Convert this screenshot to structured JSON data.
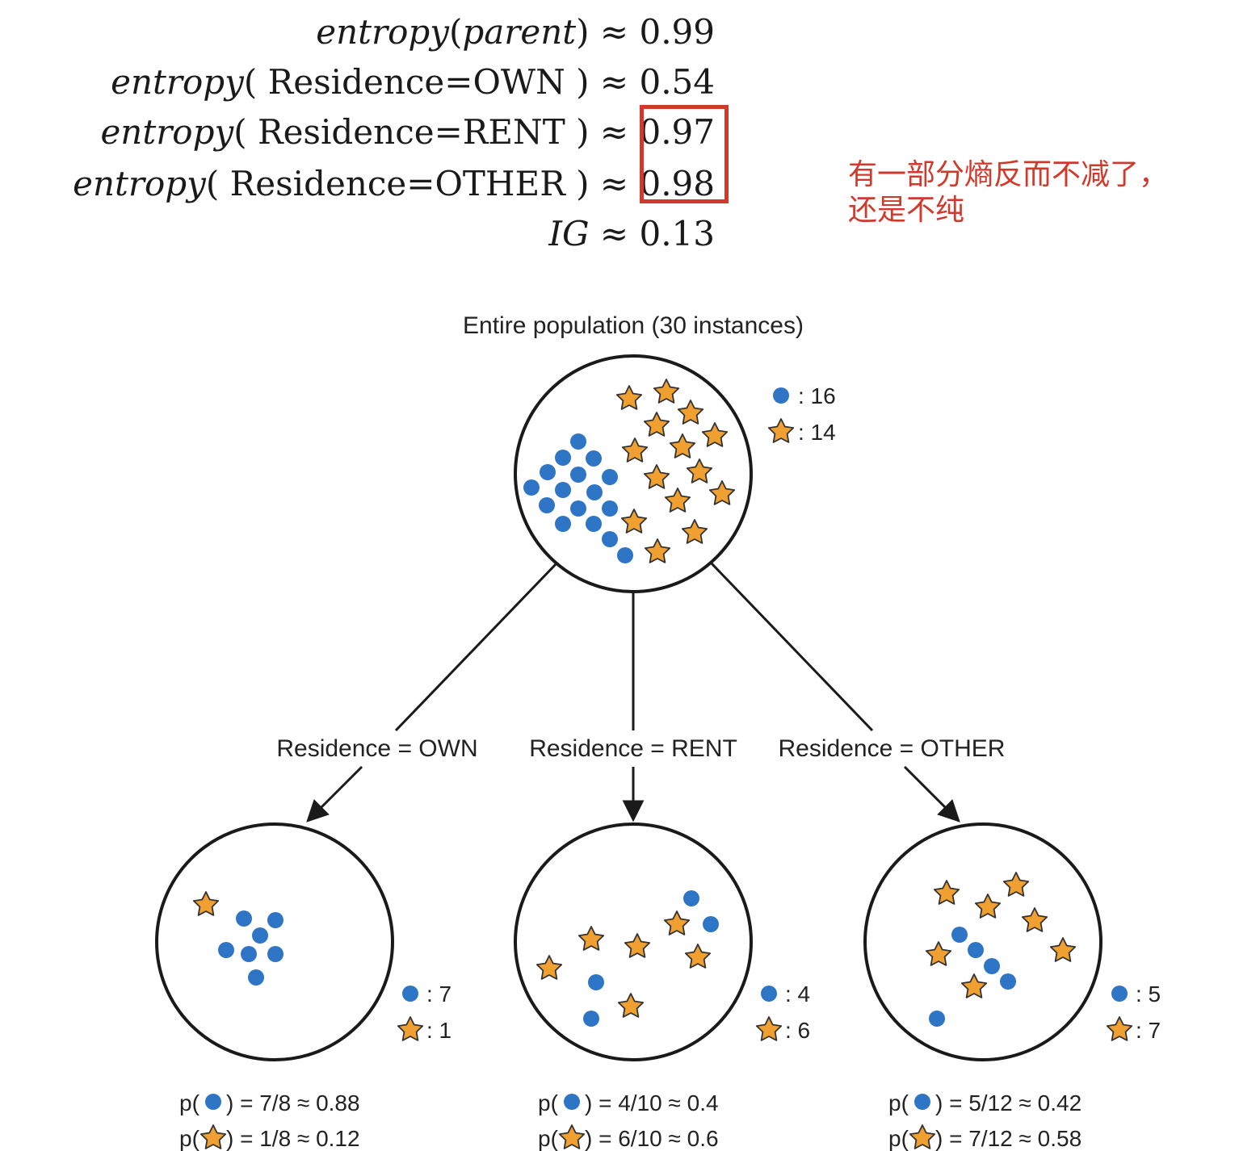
{
  "formulas": {
    "parent": {
      "fn": "entropy",
      "arg": "parent",
      "approx": "≈",
      "value": "0.99"
    },
    "own": {
      "fn": "entropy",
      "arg": "Residence=OWN",
      "approx": "≈",
      "value": "0.54"
    },
    "rent": {
      "fn": "entropy",
      "arg": "Residence=RENT",
      "approx": "≈",
      "value": "0.97"
    },
    "other": {
      "fn": "entropy",
      "arg": "Residence=OTHER",
      "approx": "≈",
      "value": "0.98"
    },
    "ig": {
      "fn": "IG",
      "approx": "≈",
      "value": "0.13"
    }
  },
  "annotation": {
    "line1": "有一部分熵反而不减了，",
    "line2": "还是不纯",
    "color": "#d0392b"
  },
  "tree": {
    "root_title": "Entire population (30 instances)",
    "root_counts": {
      "dots": ": 16",
      "stars": ": 14"
    },
    "branches": [
      {
        "label": "Residence = OWN",
        "dots": ": 7",
        "stars": ": 1",
        "p_dot": ") = 7/8 ≈ 0.88",
        "p_star": ") = 1/8 ≈ 0.12"
      },
      {
        "label": "Residence = RENT",
        "dots": ": 4",
        "stars": ": 6",
        "p_dot": ") = 4/10 ≈ 0.4",
        "p_star": ") = 6/10 ≈ 0.6"
      },
      {
        "label": "Residence = OTHER",
        "dots": ": 5",
        "stars": ": 7",
        "p_dot": ") = 5/12 ≈ 0.42",
        "p_star": ") = 7/12 ≈ 0.58"
      }
    ],
    "p_prefix": "p(",
    "colors": {
      "dot": "#2e75c5",
      "star": "#f0a030",
      "star_stroke": "#333333",
      "line": "#1a1a1a"
    }
  }
}
